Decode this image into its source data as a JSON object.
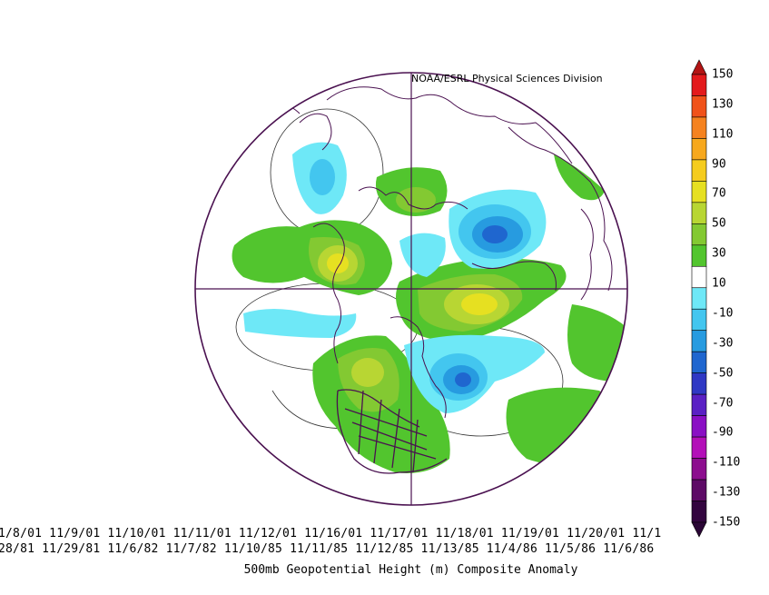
{
  "credit": "NOAA/ESRL Physical Sciences Division",
  "dates_line_1": "1/8/01 11/9/01 11/10/01 11/11/01 11/12/01 11/16/01 11/17/01 11/18/01 11/19/01 11/20/01 11/1",
  "dates_line_2": "28/81 11/29/81 11/6/82 11/7/82 11/10/85 11/11/85 11/12/85 11/13/85 11/4/86 11/5/86 11/6/86",
  "title": "500mb Geopotential Height (m) Composite Anomaly",
  "colorbar": {
    "labels": [
      "150",
      "130",
      "110",
      "90",
      "70",
      "50",
      "30",
      "10",
      "-10",
      "-30",
      "-50",
      "-70",
      "-90",
      "-110",
      "-130",
      "-150"
    ],
    "colors": [
      "#e31a1c",
      "#f0521a",
      "#f5821f",
      "#f7a81d",
      "#f5cc1e",
      "#e6e021",
      "#b8d633",
      "#83c932",
      "#52c52e",
      "#ffffff",
      "#6ee8f7",
      "#43c6ef",
      "#279be0",
      "#1f66cf",
      "#2f38c4",
      "#5a20c4",
      "#8a0fc4",
      "#b30fb8",
      "#8c0d8e",
      "#5d0a66",
      "#33053f"
    ],
    "top_triangle_color": "#b31414",
    "bottom_triangle_color": "#2a0636"
  },
  "map": {
    "projection": "polar-stereographic",
    "region": "Northern Hemisphere",
    "outline_color": "#4a1150"
  }
}
